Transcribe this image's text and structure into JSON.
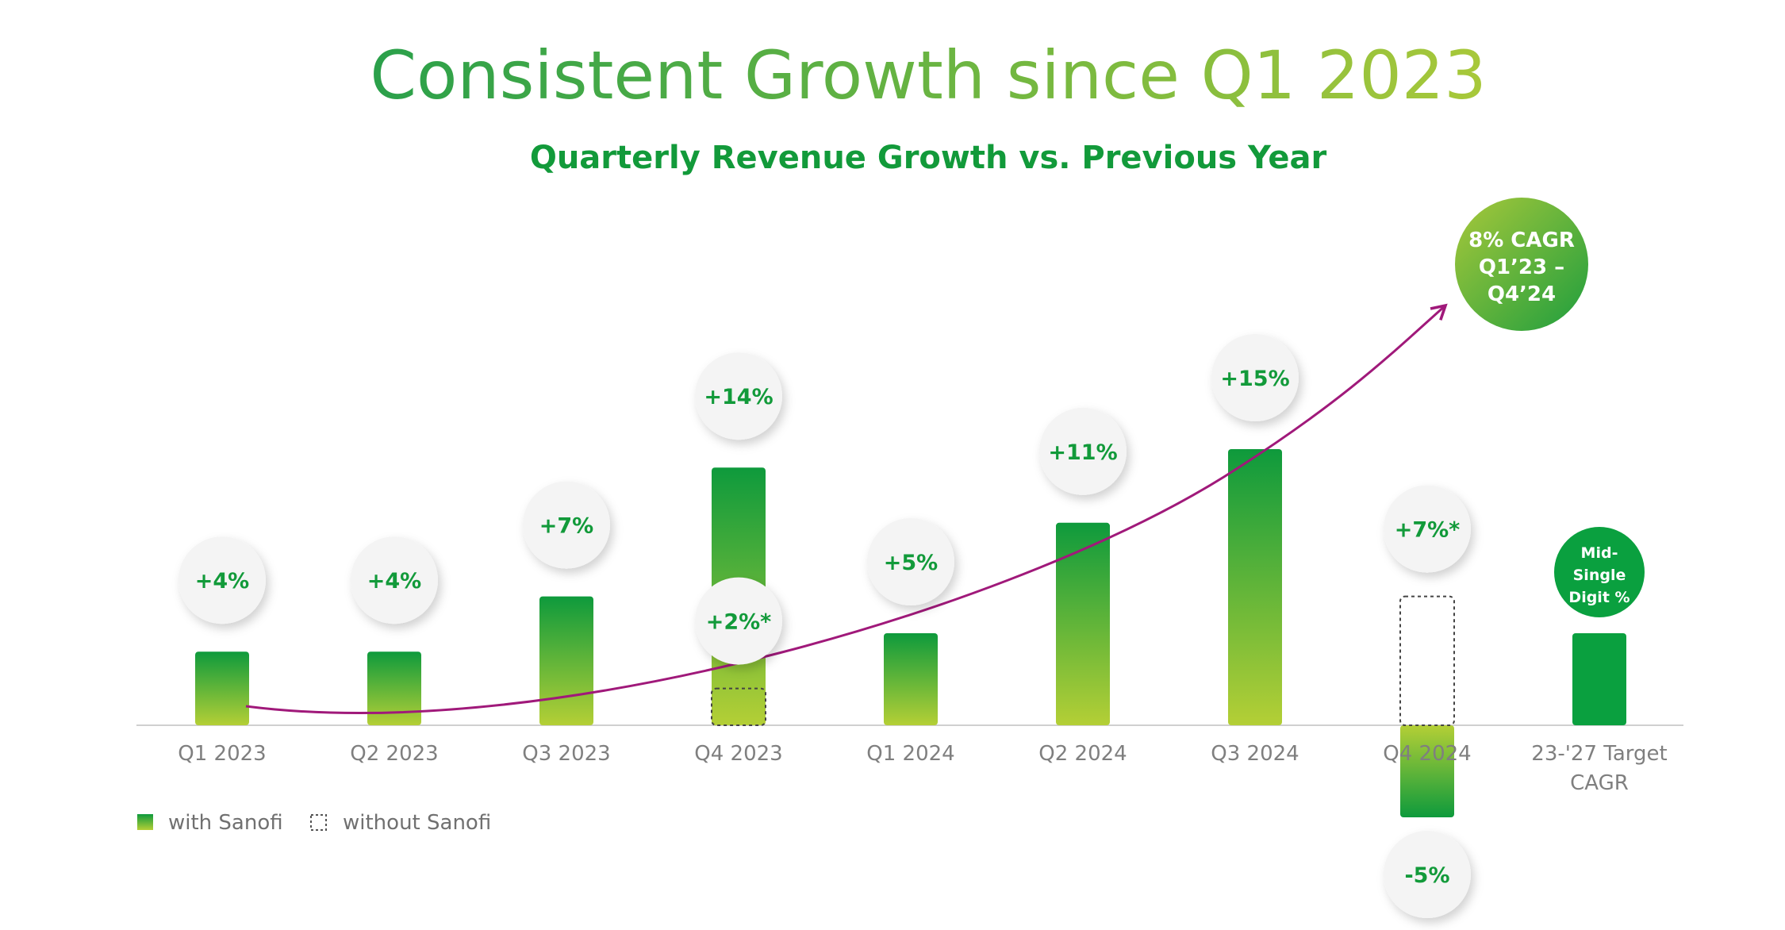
{
  "title": "Consistent Growth since Q1 2023",
  "subtitle": "Quarterly Revenue Growth vs. Previous Year",
  "colors": {
    "green_dark": "#0e9a3c",
    "green_light": "#b4cf36",
    "title_start": "#2aa04a",
    "title_end": "#a8c83a",
    "trend_line": "#a0197a",
    "axis": "#d0d0d0",
    "bubble_text": "#129a3a",
    "target_bar": "#0aa03f"
  },
  "legend": {
    "with_label": "with Sanofi",
    "without_label": "without Sanofi"
  },
  "cagr_bubble": {
    "lines": [
      "8% CAGR",
      "Q1’23 –",
      "Q4’24"
    ]
  },
  "target_bubble": {
    "lines": [
      "Mid-",
      "Single",
      "Digit %"
    ]
  },
  "chart_data": {
    "type": "bar",
    "title": "Quarterly Revenue Growth vs. Previous Year",
    "xlabel": "",
    "ylabel": "",
    "ylim": [
      -6,
      17
    ],
    "grid": false,
    "legend_placement": "bottom-left",
    "categories": [
      "Q1 2023",
      "Q2 2023",
      "Q3 2023",
      "Q4 2023",
      "Q1 2024",
      "Q2 2024",
      "Q3 2024",
      "Q4 2024",
      "23-'27 Target CAGR"
    ],
    "series": [
      {
        "name": "with Sanofi",
        "values": [
          4,
          4,
          7,
          14,
          5,
          11,
          15,
          -5,
          null
        ],
        "labels": [
          "+4%",
          "+4%",
          "+7%",
          "+14%",
          "+5%",
          "+11%",
          "+15%",
          "-5%",
          ""
        ]
      },
      {
        "name": "without Sanofi",
        "values": [
          null,
          null,
          null,
          2,
          null,
          null,
          null,
          7,
          null
        ],
        "labels": [
          "",
          "",
          "",
          "+2%*",
          "",
          "",
          "",
          "+7%*",
          ""
        ]
      }
    ],
    "target": {
      "category": "23-'27 Target CAGR",
      "value": 5,
      "label": "Mid-Single Digit %"
    },
    "trend_annotation": "8% CAGR Q1’23 – Q4’24"
  }
}
